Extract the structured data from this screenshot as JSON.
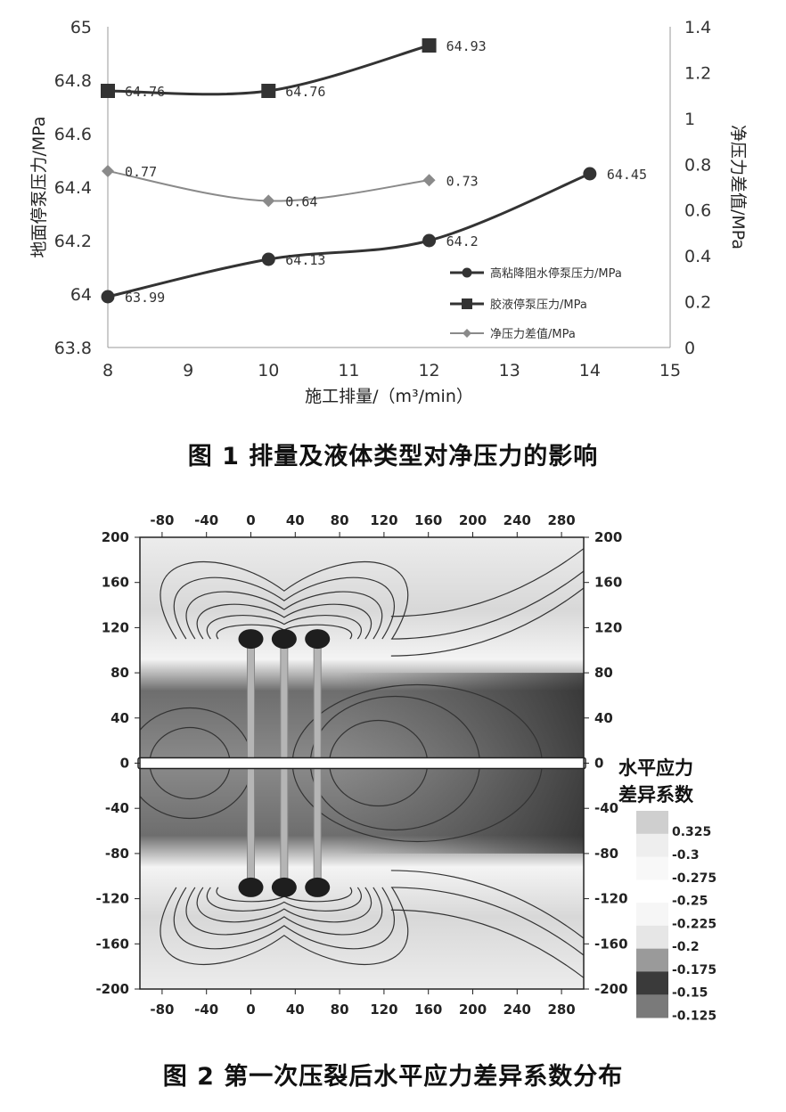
{
  "figure1": {
    "caption": "图 1  排量及液体类型对净压力的影响",
    "chart_data": {
      "type": "line",
      "x": [
        8,
        10,
        12,
        14
      ],
      "xlabel": "施工排量/（m³/min）",
      "xlim": [
        8,
        15
      ],
      "xticks": [
        "8",
        "9",
        "10",
        "11",
        "12",
        "13",
        "14",
        "15"
      ],
      "ylabel": "地面停泵压力/MPa",
      "ylim": [
        63.8,
        65
      ],
      "yticks": [
        "63.8",
        "64",
        "64.2",
        "64.4",
        "64.6",
        "64.8",
        "65"
      ],
      "y2label": "净压力差值/MPa",
      "y2lim": [
        0,
        1.4
      ],
      "y2ticks": [
        "0",
        "0.2",
        "0.4",
        "0.6",
        "0.8",
        "1",
        "1.2",
        "1.4"
      ],
      "series": [
        {
          "name": "高粘降阻水停泵压力/MPa",
          "axis": "left",
          "marker": "circle",
          "color": "#333333",
          "x": [
            8,
            10,
            12,
            14
          ],
          "values": [
            63.99,
            64.13,
            64.2,
            64.45
          ],
          "labels": [
            "63.99",
            "64.13",
            "64.2",
            "64.45"
          ]
        },
        {
          "name": "胶液停泵压力/MPa",
          "axis": "left",
          "marker": "square",
          "color": "#333333",
          "x": [
            8,
            10,
            12
          ],
          "values": [
            64.76,
            64.76,
            64.93
          ],
          "labels": [
            "64.76",
            "64.76",
            "64.93"
          ]
        },
        {
          "name": "净压力差值/MPa",
          "axis": "right",
          "marker": "diamond",
          "color": "#8a8a8a",
          "x": [
            8,
            10,
            12
          ],
          "values": [
            0.77,
            0.64,
            0.73
          ],
          "labels": [
            "0.77",
            "0.64",
            "0.73"
          ]
        }
      ],
      "legend_position": "bottom-right",
      "grid": false
    }
  },
  "figure2": {
    "caption": "图 2  第一次压裂后水平应力差异系数分布",
    "chart_data": {
      "type": "heatmap",
      "xlim": [
        -100,
        300
      ],
      "ylim": [
        -200,
        200
      ],
      "xticks": [
        "-80",
        "-40",
        "0",
        "40",
        "80",
        "120",
        "160",
        "200",
        "240",
        "280"
      ],
      "yticks": [
        "200",
        "160",
        "120",
        "80",
        "40",
        "0",
        "-40",
        "-80",
        "-120",
        "-160",
        "-200"
      ],
      "fracture_x": [
        0,
        30,
        60
      ],
      "fracture_half_length": 110,
      "wellbore_y": 0,
      "legend_title_line1": "水平应力",
      "legend_title_line2": "差异系数",
      "legend_values": [
        "0.325",
        "-0.3",
        "-0.275",
        "-0.25",
        "-0.225",
        "-0.2",
        "-0.175",
        "-0.15",
        "-0.125"
      ]
    }
  }
}
